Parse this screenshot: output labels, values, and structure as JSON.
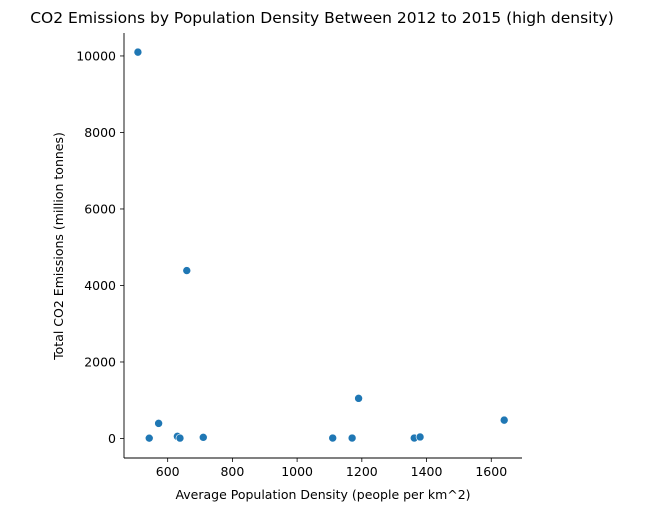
{
  "chart_data": {
    "type": "scatter",
    "title": "CO2 Emissions by Population Density Between 2012 to 2015 (high density)",
    "xlabel": "Average Population Density (people per km^2)",
    "ylabel": "Total CO2 Emissions (million tonnes)",
    "xlim": [
      465,
      1695
    ],
    "ylim": [
      -510,
      10600
    ],
    "x_ticks": [
      600,
      800,
      1000,
      1200,
      1400,
      1600
    ],
    "y_ticks": [
      0,
      2000,
      4000,
      6000,
      8000,
      10000
    ],
    "grid": false,
    "point_color": "#1f77b4",
    "points": [
      {
        "x": 508,
        "y": 10100
      },
      {
        "x": 543,
        "y": 8
      },
      {
        "x": 572,
        "y": 395
      },
      {
        "x": 630,
        "y": 55
      },
      {
        "x": 638,
        "y": 10
      },
      {
        "x": 659,
        "y": 4390
      },
      {
        "x": 710,
        "y": 30
      },
      {
        "x": 1110,
        "y": 12
      },
      {
        "x": 1170,
        "y": 12
      },
      {
        "x": 1190,
        "y": 1050
      },
      {
        "x": 1362,
        "y": 12
      },
      {
        "x": 1380,
        "y": 40
      },
      {
        "x": 1640,
        "y": 480
      }
    ]
  }
}
